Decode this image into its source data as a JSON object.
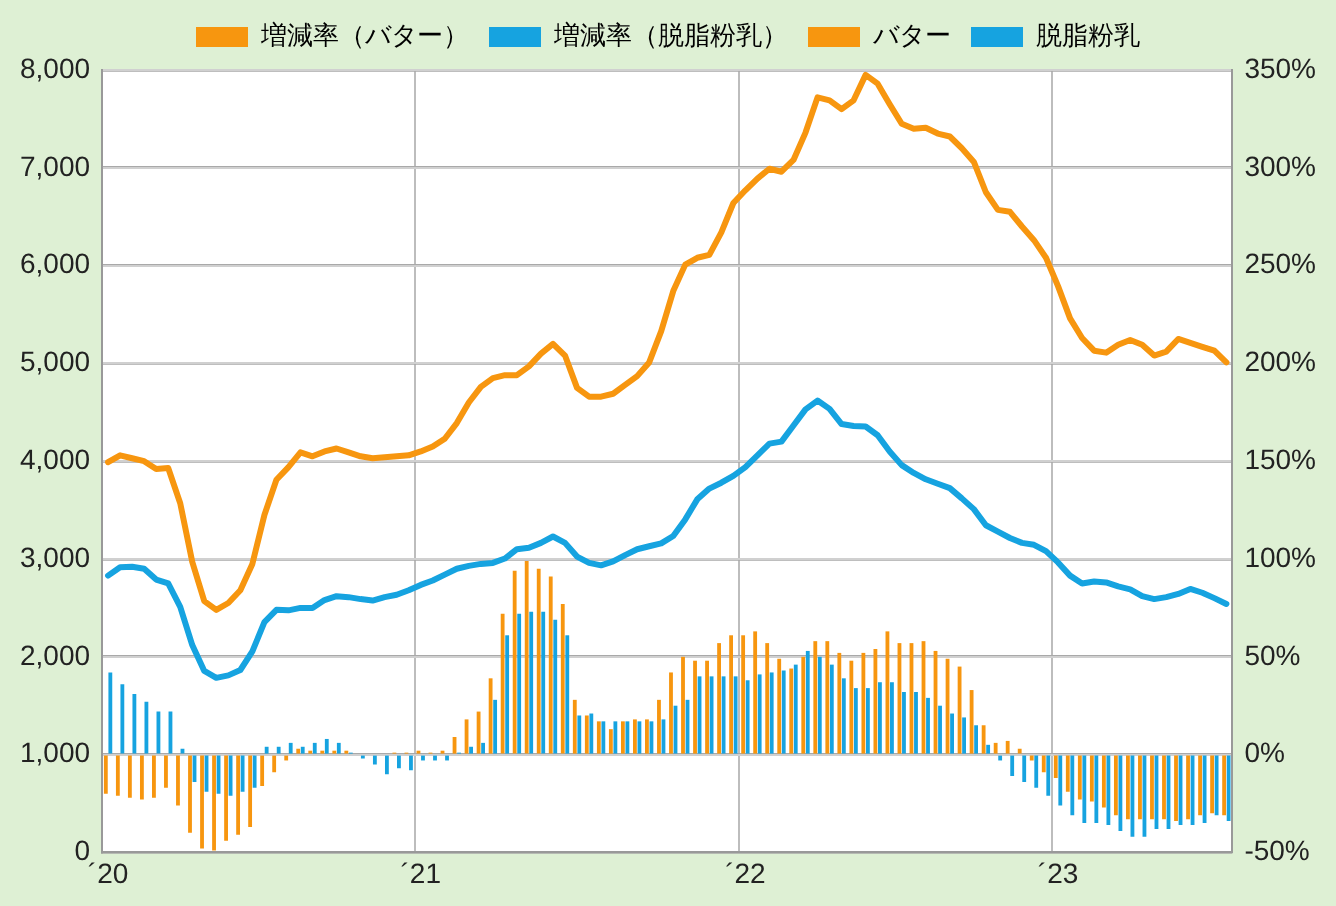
{
  "chart_data": {
    "type": "bar",
    "categories": [
      "´20",
      null,
      null,
      null,
      null,
      null,
      null,
      null,
      null,
      null,
      null,
      null,
      null,
      null,
      null,
      null,
      null,
      null,
      null,
      null,
      null,
      null,
      null,
      null,
      null,
      null,
      "´21",
      null,
      null,
      null,
      null,
      null,
      null,
      null,
      null,
      null,
      null,
      null,
      null,
      null,
      null,
      null,
      null,
      null,
      null,
      null,
      null,
      null,
      null,
      null,
      null,
      null,
      null,
      "´22",
      null,
      null,
      null,
      null,
      null,
      null,
      null,
      null,
      null,
      null,
      null,
      null,
      null,
      null,
      null,
      null,
      null,
      null,
      null,
      null,
      null,
      null,
      null,
      null,
      null,
      "´23",
      null,
      null,
      null,
      null,
      null,
      null,
      null,
      null,
      null,
      null,
      null,
      null,
      null,
      null
    ],
    "series": [
      {
        "name": "増減率（バター）",
        "color": "#f7960f",
        "axis": "y2",
        "values": [
          -20,
          -21,
          -22,
          -23,
          -22,
          -17,
          -26,
          -40,
          -48,
          -49,
          -44,
          -41,
          -37,
          -16,
          -9,
          -3,
          3,
          2,
          2,
          2,
          2,
          0,
          0,
          0,
          1,
          1,
          2,
          1,
          2,
          9,
          18,
          22,
          39,
          72,
          94,
          99,
          95,
          91,
          77,
          28,
          20,
          17,
          13,
          17,
          18,
          18,
          28,
          42,
          50,
          48,
          48,
          57,
          61,
          61,
          63,
          57,
          49,
          44,
          50,
          58,
          58,
          52,
          48,
          52,
          54,
          63,
          57,
          57,
          58,
          53,
          49,
          45,
          33,
          15,
          6,
          7,
          3,
          -3,
          -9,
          -12,
          -19,
          -23,
          -24,
          -27,
          -31,
          -33,
          -33,
          -33,
          -33,
          -34,
          -33,
          -31,
          -30,
          -31
        ]
      },
      {
        "name": "増減率（脱脂粉乳）",
        "color": "#16a3e0",
        "axis": "y2",
        "values": [
          42,
          36,
          31,
          27,
          22,
          22,
          3,
          -14,
          -19,
          -20,
          -21,
          -19,
          -17,
          4,
          4,
          6,
          4,
          6,
          8,
          6,
          1,
          -2,
          -5,
          -10,
          -7,
          -8,
          -3,
          -3,
          -3,
          1,
          4,
          6,
          28,
          61,
          72,
          73,
          73,
          69,
          61,
          20,
          21,
          17,
          17,
          17,
          17,
          17,
          18,
          25,
          28,
          40,
          40,
          40,
          40,
          38,
          41,
          42,
          43,
          46,
          53,
          50,
          46,
          39,
          34,
          34,
          37,
          37,
          32,
          32,
          29,
          25,
          21,
          19,
          15,
          5,
          -3,
          -11,
          -14,
          -17,
          -21,
          -26,
          -31,
          -35,
          -35,
          -36,
          -39,
          -42,
          -42,
          -38,
          -38,
          -36,
          -36,
          -35,
          -31,
          -34
        ]
      },
      {
        "name": "バター",
        "type": "line",
        "color": "#f7960f",
        "values": [
          3990,
          4060,
          4030,
          4000,
          3920,
          3930,
          3570,
          2970,
          2570,
          2480,
          2550,
          2680,
          2950,
          3450,
          3810,
          3940,
          4090,
          4050,
          4100,
          4130,
          4090,
          4050,
          4030,
          4040,
          4050,
          4060,
          4100,
          4150,
          4230,
          4390,
          4600,
          4760,
          4850,
          4880,
          4880,
          4970,
          5100,
          5200,
          5080,
          4750,
          4660,
          4660,
          4690,
          4780,
          4870,
          5010,
          5330,
          5740,
          6010,
          6080,
          6110,
          6340,
          6640,
          6770,
          6890,
          6990,
          6960,
          7080,
          7360,
          7720,
          7690,
          7600,
          7690,
          7950,
          7860,
          7650,
          7450,
          7400,
          7410,
          7350,
          7320,
          7200,
          7060,
          6750,
          6570,
          6550,
          6400,
          6260,
          6080,
          5790,
          5460,
          5260,
          5130,
          5110,
          5190,
          5240,
          5190,
          5080,
          5120,
          5250,
          5210,
          5170,
          5130,
          5010
        ]
      },
      {
        "name": "脱脂粉乳",
        "type": "line",
        "color": "#16a3e0",
        "values": [
          2830,
          2915,
          2920,
          2900,
          2790,
          2750,
          2510,
          2120,
          1855,
          1785,
          1810,
          1865,
          2055,
          2355,
          2480,
          2475,
          2500,
          2500,
          2580,
          2620,
          2610,
          2590,
          2575,
          2610,
          2635,
          2680,
          2735,
          2780,
          2840,
          2900,
          2930,
          2950,
          2960,
          3005,
          3100,
          3115,
          3165,
          3230,
          3165,
          3025,
          2960,
          2935,
          2975,
          3040,
          3100,
          3130,
          3160,
          3235,
          3405,
          3610,
          3720,
          3780,
          3850,
          3940,
          4060,
          4180,
          4200,
          4365,
          4530,
          4620,
          4535,
          4380,
          4360,
          4355,
          4265,
          4100,
          3960,
          3880,
          3815,
          3770,
          3725,
          3620,
          3510,
          3345,
          3280,
          3215,
          3165,
          3145,
          3080,
          2965,
          2830,
          2750,
          2770,
          2760,
          2720,
          2690,
          2620,
          2590,
          2610,
          2643,
          2694,
          2655,
          2600,
          2540
        ]
      }
    ],
    "ylim": [
      0,
      8000
    ],
    "yticks": [
      0,
      {
        "value": 1000,
        "label": "1,000"
      },
      {
        "value": 2000,
        "label": "2,000"
      },
      {
        "value": 3000,
        "label": "3,000"
      },
      {
        "value": 4000,
        "label": "4,000"
      },
      {
        "value": 5000,
        "label": "5,000"
      },
      {
        "value": 6000,
        "label": "6,000"
      },
      {
        "value": 7000,
        "label": "7,000"
      },
      {
        "value": 8000,
        "label": "8,000"
      }
    ],
    "y2lim": [
      -50,
      350
    ],
    "y2ticks": [
      {
        "value": -50,
        "label": "-50%"
      },
      {
        "value": 0,
        "label": "0%"
      },
      {
        "value": 50,
        "label": "50%"
      },
      {
        "value": 100,
        "label": "100%"
      },
      {
        "value": 150,
        "label": "150%"
      },
      {
        "value": 200,
        "label": "200%"
      },
      {
        "value": 250,
        "label": "250%"
      },
      {
        "value": 300,
        "label": "300%"
      },
      {
        "value": 350,
        "label": "350%"
      }
    ],
    "grid": true,
    "legend": "top",
    "marker": "none"
  }
}
